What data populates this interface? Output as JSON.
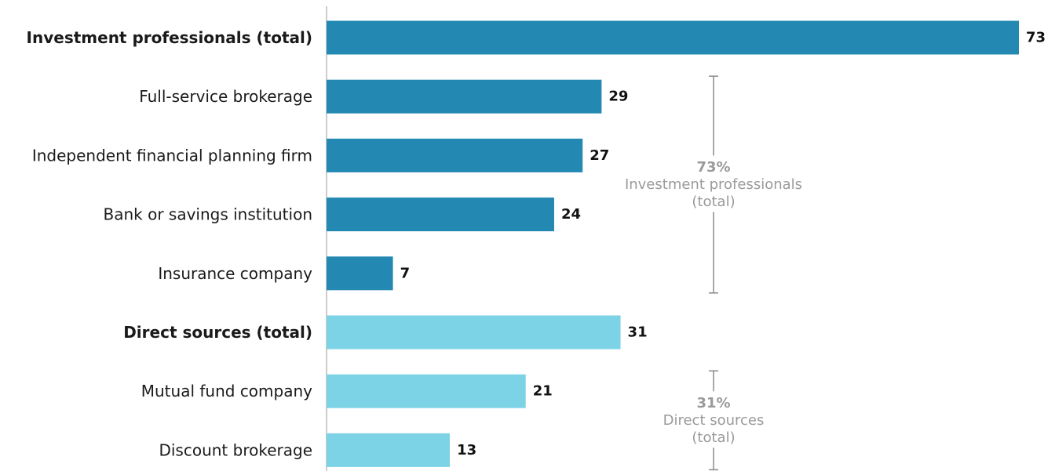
{
  "chart_data": {
    "type": "bar",
    "orientation": "horizontal",
    "categories": [
      "Investment professionals (total)",
      "Full-service brokerage",
      "Independent financial planning firm",
      "Bank or savings institution",
      "Insurance company",
      "Direct sources (total)",
      "Mutual fund company",
      "Discount brokerage"
    ],
    "values": [
      73,
      29,
      27,
      24,
      7,
      31,
      21,
      13
    ],
    "bold_categories": [
      0,
      5
    ],
    "groups": [
      {
        "indices": [
          0,
          1,
          2,
          3,
          4
        ],
        "color": "#2389B2"
      },
      {
        "indices": [
          5,
          6,
          7
        ],
        "color": "#7DD3E6"
      }
    ],
    "xlim": [
      0,
      73
    ],
    "annotations": [
      {
        "pct": "73%",
        "lines": [
          "Investment professionals",
          "(total)"
        ],
        "spans": [
          1,
          4
        ]
      },
      {
        "pct": "31%",
        "lines": [
          "Direct sources",
          "(total)"
        ],
        "spans": [
          6,
          7
        ]
      }
    ]
  }
}
